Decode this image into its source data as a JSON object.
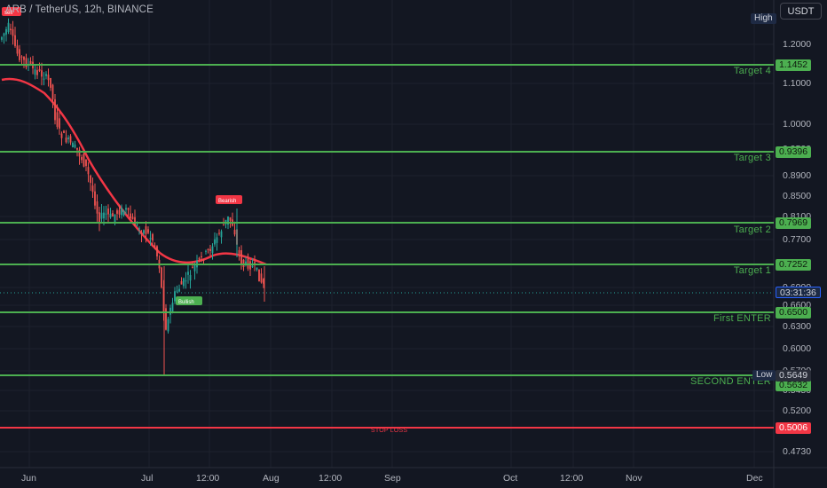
{
  "header": {
    "symbol_label": "ARB / TetherUS, 12h, BINANCE"
  },
  "toolbar": {
    "currency_button": "USDT"
  },
  "price_axis": {
    "ticks": [
      "1.2000",
      "1.1000",
      "1.0000",
      "0.9500",
      "0.8900",
      "0.8500",
      "0.8100",
      "0.7700",
      "0.6900",
      "0.6600",
      "0.6300",
      "0.6000",
      "0.5700",
      "0.5450",
      "0.5200",
      "0.4730"
    ],
    "high_label": "High",
    "low_label": "Low",
    "low_value": "0.5649",
    "countdown": "03:31:36"
  },
  "time_axis": {
    "ticks": [
      "Jun",
      "Jul",
      "12:00",
      "Aug",
      "12:00",
      "Sep",
      "Oct",
      "12:00",
      "Nov",
      "Dec"
    ]
  },
  "levels": [
    {
      "price": "1.1452",
      "label": "Target 4",
      "kind": "target"
    },
    {
      "price": "0.9396",
      "label": "Target 3",
      "kind": "target"
    },
    {
      "price": "0.7969",
      "label": "Target 2",
      "kind": "target"
    },
    {
      "price": "0.7252",
      "label": "Target 1",
      "kind": "target"
    },
    {
      "price": "0.6500",
      "label": "First ENTER",
      "kind": "entry"
    },
    {
      "price": "0.5632",
      "label": "SECOND ENTER",
      "kind": "entry"
    },
    {
      "price": "0.5006",
      "label": "STOP LOSS",
      "kind": "stop"
    }
  ],
  "signals": [
    {
      "type": "sell",
      "text": "sell"
    },
    {
      "type": "sell",
      "text": "Bearish"
    },
    {
      "type": "buy",
      "text": "Bullish"
    }
  ],
  "colors": {
    "background": "#131722",
    "target_line": "#4caf50",
    "stop_line": "#f23645",
    "up_candle": "#26a69a",
    "down_candle": "#ef5350",
    "moving_average": "#f23645",
    "grid": "#1e222d"
  }
}
